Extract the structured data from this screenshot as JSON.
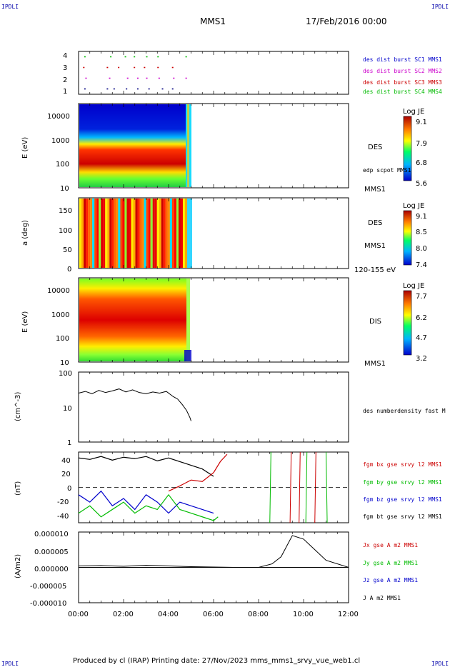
{
  "header": {
    "corner_tl": "IPDLI",
    "corner_tr": "IPDLI",
    "corner_bl": "IPDLI",
    "corner_br": "IPDLI",
    "spacecraft": "MMS1",
    "date": "17/Feb/2016 00:00"
  },
  "footer": {
    "text": "Produced by cl (IRAP)   Printing date: 27/Nov/2023   mms_mms1_srvy_vue_web1.cl"
  },
  "chart_data": [
    {
      "id": "burst",
      "type": "scatter",
      "ylim": [
        0.5,
        4.5
      ],
      "ytick_labels": [
        "1",
        "2",
        "3",
        "4"
      ],
      "ylabel": "",
      "legend": [
        {
          "text": "des dist burst SC1 MMS1",
          "color": "#0000cc"
        },
        {
          "text": "des dist burst SC2 MMS2",
          "color": "#cc00cc"
        },
        {
          "text": "des dist burst SC3 MMS3",
          "color": "#cc0000"
        },
        {
          "text": "des dist burst SC4 MMS4",
          "color": "#00bb00"
        }
      ],
      "series": [
        {
          "level": 1,
          "color": "#000080",
          "x": [
            0.25,
            1.25,
            1.55,
            2.1,
            2.6,
            3.1,
            3.7,
            4.15
          ]
        },
        {
          "level": 2,
          "color": "#cc00cc",
          "x": [
            0.3,
            1.35,
            2.15,
            2.6,
            3.0,
            3.55,
            4.2,
            4.75
          ]
        },
        {
          "level": 3,
          "color": "#cc0000",
          "x": [
            0.2,
            1.25,
            1.75,
            2.45,
            2.9,
            3.5,
            4.15
          ]
        },
        {
          "level": 4,
          "color": "#00bb00",
          "x": [
            0.25,
            1.4,
            2.05,
            2.45,
            3.0,
            3.5,
            4.75
          ]
        }
      ]
    },
    {
      "id": "des_energy",
      "type": "heatmap",
      "ylabel": "E (eV)",
      "yscale": "log",
      "ylim": [
        10,
        30000
      ],
      "ytick_labels": [
        "10",
        "100",
        "1000",
        "10000"
      ],
      "label_right": "DES",
      "annotation": "edp scpot MMS1",
      "label_below": "MMS1",
      "colorbar": {
        "title": "Log JE",
        "ticks": [
          "9.1",
          "7.9",
          "6.8",
          "5.6"
        ]
      }
    },
    {
      "id": "des_pitch",
      "type": "heatmap",
      "ylabel": "a (deg)",
      "ylim": [
        0,
        180
      ],
      "ytick_labels": [
        "0",
        "50",
        "100",
        "150"
      ],
      "label_right": "DES",
      "label_right2": "MMS1",
      "label_below": "120-155 eV",
      "colorbar": {
        "title": "Log JE",
        "ticks": [
          "9.1",
          "8.5",
          "8.0",
          "7.4"
        ]
      }
    },
    {
      "id": "dis_energy",
      "type": "heatmap",
      "ylabel": "E (eV)",
      "yscale": "log",
      "ylim": [
        10,
        30000
      ],
      "ytick_labels": [
        "10",
        "100",
        "1000",
        "10000"
      ],
      "label_right": "DIS",
      "label_below": "MMS1",
      "colorbar": {
        "title": "Log JE",
        "ticks": [
          "7.7",
          "6.2",
          "4.7",
          "3.2"
        ]
      }
    },
    {
      "id": "density",
      "type": "line",
      "ylabel": "(cm^-3)",
      "yscale": "log",
      "ylim": [
        1,
        100
      ],
      "ytick_labels": [
        "1",
        "10",
        "100"
      ],
      "legend": [
        {
          "text": "des numberdensity fast M",
          "color": "#000000"
        }
      ],
      "series": [
        {
          "name": "des numberdensity fast M",
          "color": "#000000",
          "x": [
            0.0,
            0.3,
            0.6,
            0.9,
            1.2,
            1.5,
            1.8,
            2.1,
            2.4,
            2.7,
            3.0,
            3.3,
            3.6,
            3.9,
            4.2,
            4.4,
            4.6,
            4.8,
            4.95,
            5.0
          ],
          "y": [
            25,
            28,
            24,
            30,
            26,
            29,
            33,
            27,
            31,
            26,
            24,
            27,
            25,
            28,
            20,
            17,
            12,
            8,
            5,
            4
          ]
        }
      ]
    },
    {
      "id": "fgm",
      "type": "line",
      "ylabel": "(nT)",
      "ylim": [
        -48,
        48
      ],
      "ytick_labels": [
        "-40",
        "-20",
        "0",
        "20",
        "40"
      ],
      "legend": [
        {
          "text": "fgm bx gse srvy l2 MMS1",
          "color": "#cc0000"
        },
        {
          "text": "fgm by gse srvy l2 MMS1",
          "color": "#00bb00"
        },
        {
          "text": "fgm bz gse srvy l2 MMS1",
          "color": "#0000cc"
        },
        {
          "text": "fgm bt gse srvy l2 MMS1",
          "color": "#000000"
        }
      ],
      "series": [
        {
          "name": "fgm bt gse srvy l2 MMS1",
          "color": "#000000",
          "x": [
            0.0,
            0.5,
            1.0,
            1.5,
            2.0,
            2.5,
            3.0,
            3.5,
            4.0,
            4.5,
            5.0,
            5.5,
            6.0
          ],
          "y": [
            40,
            38,
            42,
            37,
            41,
            39,
            42,
            36,
            40,
            35,
            30,
            25,
            15
          ]
        },
        {
          "name": "fgm bz gse srvy l2 MMS1",
          "color": "#0000cc",
          "x": [
            0.0,
            0.5,
            1.0,
            1.5,
            2.0,
            2.5,
            3.0,
            3.5,
            4.0,
            4.5,
            5.0,
            5.5,
            6.0
          ],
          "y": [
            -10,
            -20,
            -5,
            -25,
            -15,
            -30,
            -10,
            -20,
            -35,
            -20,
            -25,
            -30,
            -35
          ]
        },
        {
          "name": "fgm by gse srvy l2 MMS1",
          "color": "#00bb00",
          "x": [
            0.0,
            0.5,
            1.0,
            1.5,
            2.0,
            2.5,
            3.0,
            3.5,
            4.0,
            4.5,
            5.0,
            5.5,
            6.0,
            6.2
          ],
          "y": [
            -35,
            -25,
            -40,
            -30,
            -20,
            -35,
            -25,
            -30,
            -10,
            -30,
            -35,
            -40,
            -45,
            -40
          ]
        },
        {
          "name": "fgm bx gse srvy l2 MMS1",
          "color": "#cc0000",
          "x": [
            4.0,
            4.5,
            5.0,
            5.5,
            6.0,
            6.3,
            6.6
          ],
          "y": [
            -5,
            2,
            10,
            8,
            20,
            35,
            45
          ]
        }
      ],
      "spikes": [
        {
          "x": 8.5,
          "color": "#00bb00",
          "y0": -48,
          "y1": 48
        },
        {
          "x": 9.4,
          "color": "#cc0000",
          "y0": -48,
          "y1": 48
        },
        {
          "x": 9.8,
          "color": "#cc0000",
          "y0": -48,
          "y1": 48
        },
        {
          "x": 10.1,
          "color": "#00bb00",
          "y0": -48,
          "y1": 48
        },
        {
          "x": 10.5,
          "color": "#cc0000",
          "y0": -48,
          "y1": 48
        },
        {
          "x": 11.0,
          "color": "#00bb00",
          "y0": 48,
          "y1": -48
        }
      ]
    },
    {
      "id": "current",
      "type": "line",
      "ylabel": "(A/m2)",
      "ylim": [
        -1e-05,
        1e-05
      ],
      "ytick_labels": [
        "-0.000010",
        "-0.000005",
        "0.000000",
        "0.000005",
        "0.000010"
      ],
      "legend": [
        {
          "text": "Jx gse A m2 MMS1",
          "color": "#cc0000"
        },
        {
          "text": "Jy gse A m2 MMS1",
          "color": "#00bb00"
        },
        {
          "text": "Jz gse A m2 MMS1",
          "color": "#0000cc"
        },
        {
          "text": "J A m2 MMS1",
          "color": "#000000"
        }
      ],
      "series": [
        {
          "name": "J A m2 MMS1",
          "color": "#000000",
          "x": [
            0.0,
            1.0,
            2.0,
            3.0,
            4.0,
            5.0,
            6.0,
            7.0,
            8.0,
            8.6,
            9.0,
            9.5,
            10.0,
            10.5,
            11.0,
            12.0
          ],
          "y": [
            4e-07,
            5e-07,
            3e-07,
            6e-07,
            4e-07,
            2e-07,
            1e-07,
            0.0,
            0.0,
            1e-06,
            3e-06,
            9e-06,
            8e-06,
            5e-06,
            2e-06,
            0.0
          ]
        }
      ]
    }
  ],
  "x_axis": {
    "xlim": [
      0,
      12
    ],
    "tick_labels": [
      "00:00",
      "02:00",
      "04:00",
      "06:00",
      "08:00",
      "10:00",
      "12:00"
    ]
  }
}
